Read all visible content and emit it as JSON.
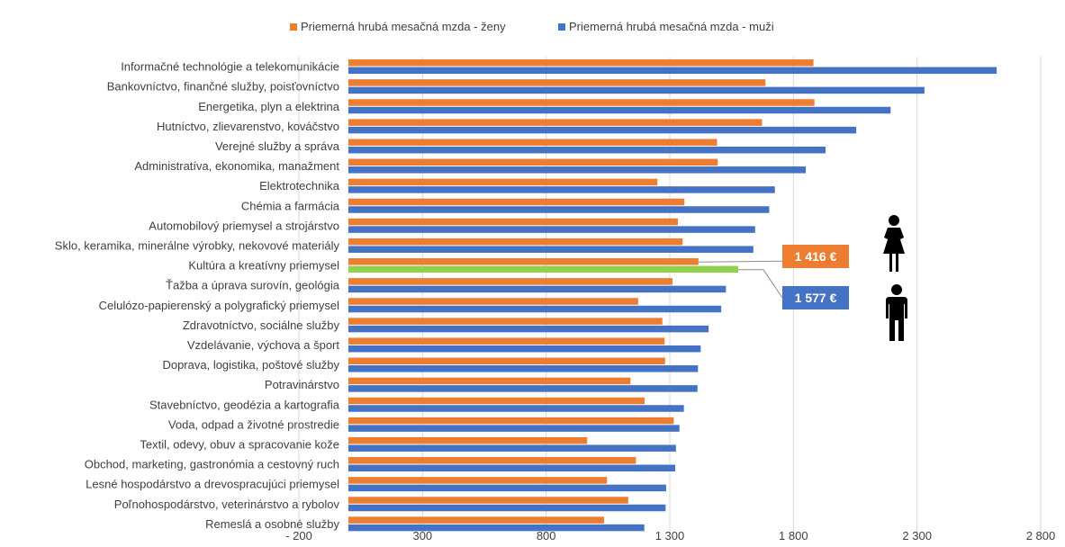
{
  "chart_data": {
    "type": "bar",
    "orientation": "horizontal",
    "title": "",
    "xlabel": "",
    "ylabel": "",
    "xlim": [
      -200,
      2800
    ],
    "x_ticks": [
      -200,
      300,
      800,
      1300,
      1800,
      2300,
      2800
    ],
    "x_tick_labels": [
      "- 200",
      "300",
      "800",
      "1 300",
      "1 800",
      "2 300",
      "2 800"
    ],
    "grid": "vertical",
    "legend_position": "top",
    "categories": [
      "Informačné technológie a telekomunikácie",
      "Bankovníctvo, finančné služby, poisťovníctvo",
      "Energetika, plyn a elektrina",
      "Hutníctvo, zlievarenstvo, kováčstvo",
      "Verejné služby a správa",
      "Administratíva, ekonomika, manažment",
      "Elektrotechnika",
      "Chémia a farmácia",
      "Automobilový priemysel a strojárstvo",
      "Sklo, keramika, minerálne výrobky, nekovové materiály",
      "Kultúra a kreatívny priemysel",
      "Ťažba a úprava surovín, geológia",
      "Celulózo-papierenský a polygrafický priemysel",
      "Zdravotníctvo, sociálne služby",
      "Vzdelávanie, výchova a šport",
      "Doprava, logistika, poštové služby",
      "Potravinárstvo",
      "Stavebníctvo, geodézia a kartografia",
      "Voda, odpad a životné prostredie",
      "Textil, odevy, obuv a spracovanie kože",
      "Obchod, marketing, gastronómia a cestovný ruch",
      "Lesné hospodárstvo a drevospracujúci priemysel",
      "Poľnohospodárstvo, veterinárstvo a rybolov",
      "Remeslá a osobné služby"
    ],
    "series": [
      {
        "name": "Priemerná hrubá mesačná mzda - ženy",
        "color": "#ED7D31",
        "values": [
          1881,
          1687,
          1885,
          1673,
          1491,
          1494,
          1250,
          1359,
          1333,
          1352,
          1416,
          1311,
          1172,
          1270,
          1279,
          1281,
          1141,
          1198,
          1316,
          966,
          1163,
          1046,
          1132,
          1034
        ]
      },
      {
        "name": "Priemerná hrubá mesačná mzda - muži",
        "color": "#4472C4",
        "values": [
          2622,
          2330,
          2193,
          2054,
          1930,
          1850,
          1725,
          1702,
          1645,
          1638,
          1577,
          1527,
          1508,
          1457,
          1425,
          1414,
          1412,
          1357,
          1339,
          1325,
          1322,
          1285,
          1283,
          1197
        ]
      }
    ],
    "highlight": {
      "category": "Kultúra a kreatívny priemysel",
      "color": "#92D050"
    }
  },
  "callouts": {
    "women_value": "1 416 €",
    "men_value": "1 577 €",
    "women_color": "#ED7D31",
    "men_color": "#4472C4"
  },
  "icons": {
    "women": "woman-icon",
    "men": "man-icon"
  }
}
